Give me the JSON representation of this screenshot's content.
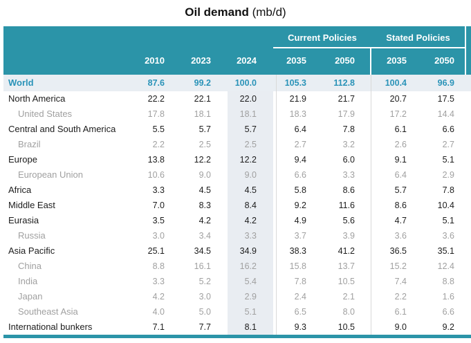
{
  "chart_data": {
    "type": "table",
    "title": "Oil demand",
    "unit": "(mb/d)",
    "column_groups": [
      {
        "label": "",
        "columns": [
          "2010",
          "2023",
          "2024"
        ]
      },
      {
        "label": "Current Policies",
        "columns": [
          "2035",
          "2050"
        ]
      },
      {
        "label": "Stated Policies",
        "columns": [
          "2035",
          "2050"
        ]
      }
    ],
    "rows": [
      {
        "name": "World",
        "level": "world",
        "values": [
          "87.6",
          "99.2",
          "100.0",
          "105.3",
          "112.8",
          "100.4",
          "96.9"
        ]
      },
      {
        "name": "North America",
        "level": "main",
        "values": [
          "22.2",
          "22.1",
          "22.0",
          "21.9",
          "21.7",
          "20.7",
          "17.5"
        ]
      },
      {
        "name": "United States",
        "level": "sub",
        "values": [
          "17.8",
          "18.1",
          "18.1",
          "18.3",
          "17.9",
          "17.2",
          "14.4"
        ]
      },
      {
        "name": "Central and South America",
        "level": "main",
        "values": [
          "5.5",
          "5.7",
          "5.7",
          "6.4",
          "7.8",
          "6.1",
          "6.6"
        ]
      },
      {
        "name": "Brazil",
        "level": "sub",
        "values": [
          "2.2",
          "2.5",
          "2.5",
          "2.7",
          "3.2",
          "2.6",
          "2.7"
        ]
      },
      {
        "name": "Europe",
        "level": "main",
        "values": [
          "13.8",
          "12.2",
          "12.2",
          "9.4",
          "6.0",
          "9.1",
          "5.1"
        ]
      },
      {
        "name": "European Union",
        "level": "sub",
        "values": [
          "10.6",
          "9.0",
          "9.0",
          "6.6",
          "3.3",
          "6.4",
          "2.9"
        ]
      },
      {
        "name": "Africa",
        "level": "main",
        "values": [
          "3.3",
          "4.5",
          "4.5",
          "5.8",
          "8.6",
          "5.7",
          "7.8"
        ]
      },
      {
        "name": "Middle East",
        "level": "main",
        "values": [
          "7.0",
          "8.3",
          "8.4",
          "9.2",
          "11.6",
          "8.6",
          "10.4"
        ]
      },
      {
        "name": "Eurasia",
        "level": "main",
        "values": [
          "3.5",
          "4.2",
          "4.2",
          "4.9",
          "5.6",
          "4.7",
          "5.1"
        ]
      },
      {
        "name": "Russia",
        "level": "sub",
        "values": [
          "3.0",
          "3.4",
          "3.3",
          "3.7",
          "3.9",
          "3.6",
          "3.6"
        ]
      },
      {
        "name": "Asia Pacific",
        "level": "main",
        "values": [
          "25.1",
          "34.5",
          "34.9",
          "38.3",
          "41.2",
          "36.5",
          "35.1"
        ]
      },
      {
        "name": "China",
        "level": "sub",
        "values": [
          "8.8",
          "16.1",
          "16.2",
          "15.8",
          "13.7",
          "15.2",
          "12.4"
        ]
      },
      {
        "name": "India",
        "level": "sub",
        "values": [
          "3.3",
          "5.2",
          "5.4",
          "7.8",
          "10.5",
          "7.4",
          "8.8"
        ]
      },
      {
        "name": "Japan",
        "level": "sub",
        "values": [
          "4.2",
          "3.0",
          "2.9",
          "2.4",
          "2.1",
          "2.2",
          "1.6"
        ]
      },
      {
        "name": "Southeast Asia",
        "level": "sub",
        "values": [
          "4.0",
          "5.0",
          "5.1",
          "6.5",
          "8.0",
          "6.1",
          "6.6"
        ]
      },
      {
        "name": "International bunkers",
        "level": "main",
        "values": [
          "7.1",
          "7.7",
          "8.1",
          "9.3",
          "10.5",
          "9.0",
          "9.2"
        ]
      }
    ]
  },
  "colors": {
    "teal": "#2b94a8",
    "worldtext": "#2a93b8",
    "worldbg": "#e9eef3",
    "col2024": "#e9edf2",
    "subtext": "#a0a0a0",
    "divider": "#d9d9d9",
    "maintext": "#1c1c1c"
  }
}
